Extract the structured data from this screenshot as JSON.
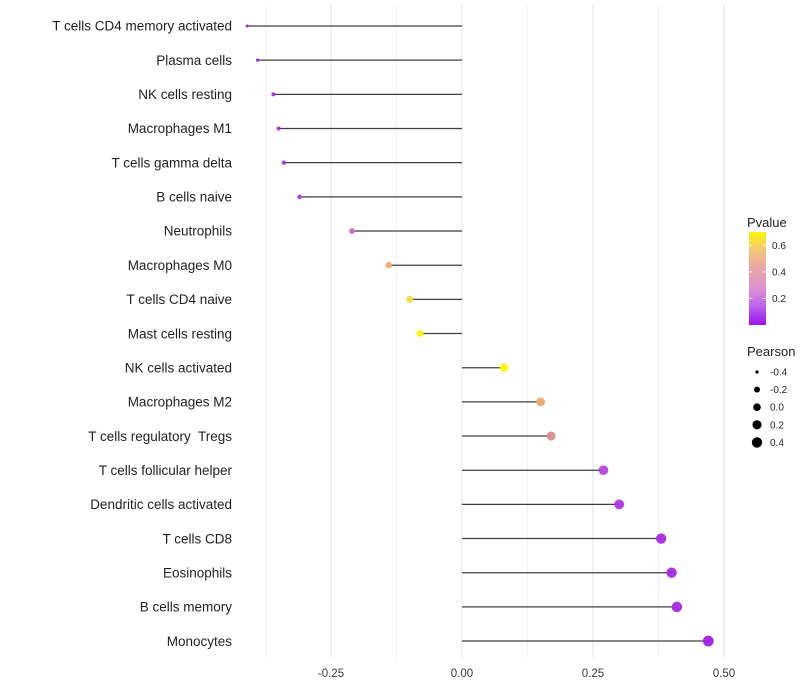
{
  "chart_data": {
    "type": "lollipop",
    "title": "",
    "xlabel": "",
    "ylabel": "",
    "xlim": [
      -0.424,
      0.525
    ],
    "x_ticks": [
      -0.25,
      0.0,
      0.25,
      0.5
    ],
    "x_tick_labels": [
      "-0.25",
      "0.00",
      "0.25",
      "0.50"
    ],
    "minor_gridlines": [
      -0.375,
      -0.125,
      0.125,
      0.375
    ],
    "grid": "on",
    "baseline_x": 0.0,
    "points": [
      {
        "label": "T cells CD4 memory activated",
        "pearson": -0.41,
        "color": "#9623dc"
      },
      {
        "label": "Plasma cells",
        "pearson": -0.39,
        "color": "#9c28de"
      },
      {
        "label": "NK cells resting",
        "pearson": -0.36,
        "color": "#a02cdf"
      },
      {
        "label": "Macrophages M1",
        "pearson": -0.35,
        "color": "#a230e0"
      },
      {
        "label": "T cells gamma delta",
        "pearson": -0.34,
        "color": "#a332e0"
      },
      {
        "label": "B cells naive",
        "pearson": -0.31,
        "color": "#aa3cdd"
      },
      {
        "label": "Neutrophils",
        "pearson": -0.21,
        "color": "#cb6dc4"
      },
      {
        "label": "Macrophages M0",
        "pearson": -0.14,
        "color": "#eeab72"
      },
      {
        "label": "T cells CD4 naive",
        "pearson": -0.1,
        "color": "#f1dd3e"
      },
      {
        "label": "Mast cells resting",
        "pearson": -0.08,
        "color": "#fbf30c"
      },
      {
        "label": "NK cells activated",
        "pearson": 0.08,
        "color": "#fdf602"
      },
      {
        "label": "Macrophages M2",
        "pearson": 0.15,
        "color": "#eba670"
      },
      {
        "label": "T cells regulatory  Tregs",
        "pearson": 0.17,
        "color": "#db8f90"
      },
      {
        "label": "T cells follicular helper",
        "pearson": 0.27,
        "color": "#b746d9"
      },
      {
        "label": "Dendritic cells activated",
        "pearson": 0.3,
        "color": "#ae36e2"
      },
      {
        "label": "T cells CD8",
        "pearson": 0.38,
        "color": "#a82ae5"
      },
      {
        "label": "Eosinophils",
        "pearson": 0.4,
        "color": "#a527e6"
      },
      {
        "label": "B cells memory",
        "pearson": 0.41,
        "color": "#a627e6"
      },
      {
        "label": "Monocytes",
        "pearson": 0.47,
        "color": "#a31fe8"
      }
    ],
    "legends": {
      "pvalue": {
        "title": "Pvalue",
        "tick_labels": [
          "0.6",
          "0.4",
          "0.2"
        ],
        "tick_values": [
          0.6,
          0.4,
          0.2
        ],
        "bar_value_range": [
          0.0,
          0.7
        ],
        "gradient_top_to_bottom": [
          "#fcf502",
          "#f4c47b",
          "#e8a4a8",
          "#dc93d0",
          "#bc63ee",
          "#9d13f3"
        ]
      },
      "pearson": {
        "title": "Pearson",
        "items": [
          {
            "label": "-0.4",
            "value": -0.4
          },
          {
            "label": "-0.2",
            "value": -0.2
          },
          {
            "label": "0.0",
            "value": 0.0
          },
          {
            "label": "0.2",
            "value": 0.2
          },
          {
            "label": "0.4",
            "value": 0.4
          }
        ],
        "dot_color": "#000000"
      }
    },
    "colors": {
      "stem": "#3f3f3f",
      "grid_major": "#e3e3e3",
      "grid_minor": "#f0f0f0",
      "background": "#ffffff"
    }
  }
}
